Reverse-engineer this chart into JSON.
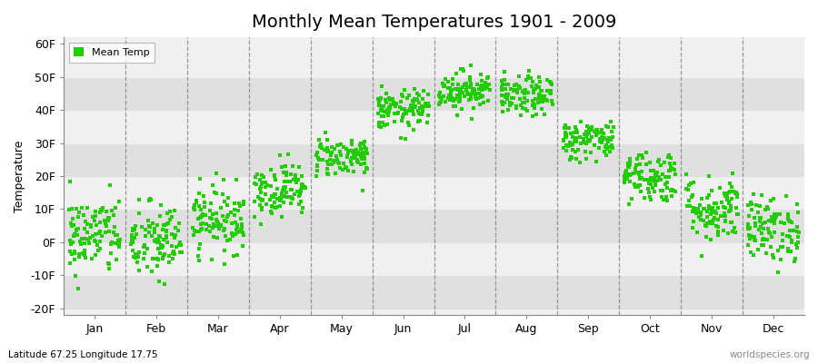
{
  "title": "Monthly Mean Temperatures 1901 - 2009",
  "ylabel": "Temperature",
  "xlabel_labels": [
    "Jan",
    "Feb",
    "Mar",
    "Apr",
    "May",
    "Jun",
    "Jul",
    "Aug",
    "Sep",
    "Oct",
    "Nov",
    "Dec"
  ],
  "subtitle": "Latitude 67.25 Longitude 17.75",
  "watermark": "worldspecies.org",
  "ylim": [
    -22,
    62
  ],
  "yticks": [
    -20,
    -10,
    0,
    10,
    20,
    30,
    40,
    50,
    60
  ],
  "ytick_labels": [
    "-20F",
    "-10F",
    "0F",
    "10F",
    "20F",
    "30F",
    "40F",
    "50F",
    "60F"
  ],
  "dot_color": "#22cc00",
  "bg_color": "#ffffff",
  "plot_bg_color": "#f0f0f0",
  "alt_band_color": "#e0e0e0",
  "legend_label": "Mean Temp",
  "n_years": 109,
  "monthly_means": [
    2,
    0,
    7,
    16,
    26,
    40,
    46,
    44,
    31,
    20,
    10,
    4
  ],
  "monthly_stds": [
    6,
    6,
    5,
    4,
    3,
    3,
    3,
    3,
    3,
    4,
    5,
    5
  ],
  "title_fontsize": 14,
  "label_fontsize": 9,
  "ylabel_fontsize": 9
}
